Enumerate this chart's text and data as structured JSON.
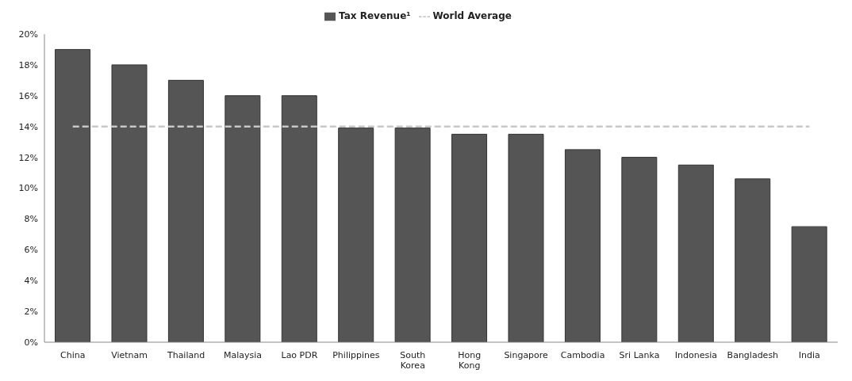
{
  "chart_data": {
    "type": "bar",
    "categories": [
      "China",
      "Vietnam",
      "Thailand",
      "Malaysia",
      "Lao PDR",
      "Philippines",
      "South Korea",
      "Hong Kong",
      "Singapore",
      "Cambodia",
      "Sri Lanka",
      "Indonesia",
      "Bangladesh",
      "India"
    ],
    "series": [
      {
        "name": "Tax Revenue¹",
        "color": "#555555",
        "values": [
          19,
          18,
          17,
          16,
          16,
          13.9,
          13.9,
          13.5,
          13.5,
          12.5,
          12,
          11.5,
          10.6,
          7.5
        ]
      },
      {
        "name": "World Average",
        "type": "line",
        "color": "#c8c8c8",
        "line_style": "dashed",
        "marker": "none",
        "values": [
          14,
          14,
          14,
          14,
          14,
          14,
          14,
          14,
          14,
          14,
          14,
          14,
          14,
          14
        ]
      }
    ],
    "ylim": [
      0,
      20
    ],
    "yticks": [
      {
        "value": 0,
        "label": "0%"
      },
      {
        "value": 2,
        "label": "2%"
      },
      {
        "value": 4,
        "label": "4%"
      },
      {
        "value": 6,
        "label": "6%"
      },
      {
        "value": 8,
        "label": "8%"
      },
      {
        "value": 10,
        "label": "10%"
      },
      {
        "value": 12,
        "label": "12%"
      },
      {
        "value": 14,
        "label": "14%"
      },
      {
        "value": 16,
        "label": "16%"
      },
      {
        "value": 18,
        "label": "18%"
      },
      {
        "value": 20,
        "label": "20%"
      }
    ],
    "legend": "top",
    "grid": false
  }
}
